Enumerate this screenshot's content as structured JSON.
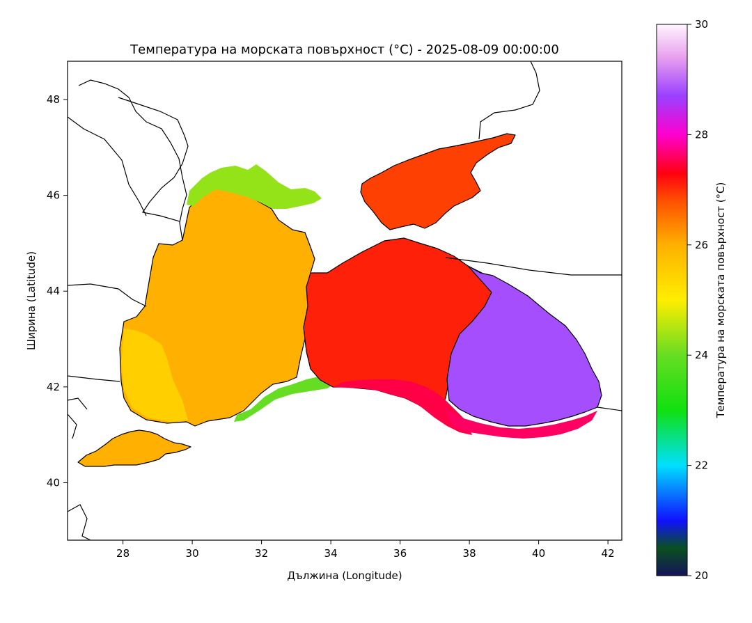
{
  "chart_data": {
    "type": "heatmap",
    "title": "Температура на морската повърхност (°C) - 2025-08-09 00:00:00",
    "xlabel": "Дължина (Longitude)",
    "ylabel": "Ширина (Latitude)",
    "xlim": [
      26.4,
      42.4
    ],
    "ylim": [
      38.8,
      48.8
    ],
    "x_ticks": [
      28,
      30,
      32,
      34,
      36,
      38,
      40,
      42
    ],
    "y_ticks": [
      40,
      42,
      44,
      46,
      48
    ],
    "colorbar": {
      "label": "Температура на морската повърхност (°C)",
      "range": [
        20,
        30
      ],
      "ticks": [
        20,
        22,
        24,
        26,
        28,
        30
      ],
      "colormap": [
        {
          "value": 20.0,
          "color": "#14145a"
        },
        {
          "value": 20.5,
          "color": "#0a5020"
        },
        {
          "value": 21.0,
          "color": "#1010ff"
        },
        {
          "value": 22.0,
          "color": "#00e0ff"
        },
        {
          "value": 23.0,
          "color": "#10e010"
        },
        {
          "value": 24.0,
          "color": "#66dd22"
        },
        {
          "value": 25.0,
          "color": "#ffee00"
        },
        {
          "value": 26.0,
          "color": "#ffb000"
        },
        {
          "value": 26.8,
          "color": "#ff5000"
        },
        {
          "value": 27.3,
          "color": "#ff0010"
        },
        {
          "value": 28.0,
          "color": "#ff00d0"
        },
        {
          "value": 28.7,
          "color": "#9a40ff"
        },
        {
          "value": 29.4,
          "color": "#e8a0ee"
        },
        {
          "value": 30.0,
          "color": "#fff5ff"
        }
      ]
    },
    "regions": [
      {
        "name": "western basin",
        "value": 26.0
      },
      {
        "name": "western shelf",
        "value": 25.5
      },
      {
        "name": "north-western shelf",
        "value": 24.3
      },
      {
        "name": "south-western coast",
        "value": 24.0
      },
      {
        "name": "central basin",
        "value": 27.1
      },
      {
        "name": "south-central coast",
        "value": 27.5
      },
      {
        "name": "eastern basin",
        "value": 28.8
      },
      {
        "name": "south-eastern coast",
        "value": 27.6
      },
      {
        "name": "Sea of Azov",
        "value": 26.9
      },
      {
        "name": "Sea of Marmara",
        "value": 26.0
      }
    ]
  }
}
